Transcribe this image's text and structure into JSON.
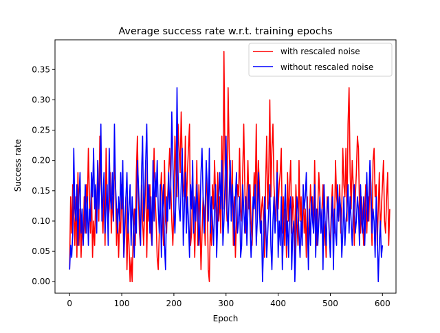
{
  "chart_data": {
    "type": "line",
    "title": "Average success rate w.r.t. training epochs",
    "xlabel": "Epoch",
    "ylabel": "Success rate",
    "xlim": [
      -28,
      626
    ],
    "ylim": [
      -0.019,
      0.399
    ],
    "xticks": [
      0,
      100,
      200,
      300,
      400,
      500,
      600
    ],
    "yticks": [
      0.0,
      0.05,
      0.1,
      0.15,
      0.2,
      0.25,
      0.3,
      0.35
    ],
    "ytick_labels": [
      "0.00",
      "0.05",
      "0.10",
      "0.15",
      "0.20",
      "0.25",
      "0.30",
      "0.35"
    ],
    "grid": false,
    "legend_position": "upper right",
    "series": [
      {
        "name": "with rescaled noise",
        "color": "#ff0000",
        "x_start": 0,
        "x_step": 2,
        "values": [
          0.02,
          0.14,
          0.08,
          0.16,
          0.12,
          0.06,
          0.14,
          0.04,
          0.18,
          0.06,
          0.12,
          0.04,
          0.1,
          0.06,
          0.14,
          0.08,
          0.16,
          0.12,
          0.22,
          0.14,
          0.08,
          0.16,
          0.04,
          0.1,
          0.06,
          0.14,
          0.12,
          0.2,
          0.1,
          0.24,
          0.18,
          0.12,
          0.08,
          0.16,
          0.06,
          0.22,
          0.14,
          0.1,
          0.12,
          0.18,
          0.08,
          0.14,
          0.1,
          0.2,
          0.16,
          0.06,
          0.12,
          0.04,
          0.1,
          0.08,
          0.16,
          0.12,
          0.04,
          0.08,
          0.14,
          0.02,
          0.1,
          0.06,
          0.0,
          0.04,
          0.0,
          0.08,
          0.12,
          0.06,
          0.18,
          0.24,
          0.14,
          0.08,
          0.06,
          0.16,
          0.1,
          0.06,
          0.12,
          0.2,
          0.04,
          0.14,
          0.1,
          0.16,
          0.08,
          0.06,
          0.12,
          0.22,
          0.14,
          0.1,
          0.04,
          0.02,
          0.08,
          0.14,
          0.18,
          0.12,
          0.06,
          0.2,
          0.1,
          0.08,
          0.14,
          0.18,
          0.22,
          0.16,
          0.1,
          0.06,
          0.12,
          0.24,
          0.18,
          0.14,
          0.26,
          0.22,
          0.18,
          0.28,
          0.2,
          0.16,
          0.14,
          0.24,
          0.12,
          0.18,
          0.22,
          0.26,
          0.06,
          0.08,
          0.16,
          0.1,
          0.04,
          0.12,
          0.2,
          0.06,
          0.16,
          0.1,
          0.02,
          0.08,
          0.14,
          0.12,
          0.06,
          0.18,
          0.14,
          0.02,
          0.0,
          0.1,
          0.06,
          0.16,
          0.12,
          0.2,
          0.14,
          0.08,
          0.18,
          0.1,
          0.14,
          0.08,
          0.24,
          0.12,
          0.38,
          0.2,
          0.14,
          0.1,
          0.32,
          0.22,
          0.16,
          0.12,
          0.2,
          0.06,
          0.14,
          0.04,
          0.1,
          0.16,
          0.14,
          0.22,
          0.12,
          0.1,
          0.18,
          0.26,
          0.16,
          0.08,
          0.14,
          0.2,
          0.12,
          0.16,
          0.1,
          0.06,
          0.12,
          0.18,
          0.14,
          0.26,
          0.1,
          0.2,
          0.16,
          0.08,
          0.12,
          0.14,
          0.1,
          0.04,
          0.16,
          0.24,
          0.12,
          0.18,
          0.3,
          0.14,
          0.22,
          0.26,
          0.16,
          0.12,
          0.1,
          0.2,
          0.12,
          0.16,
          0.18,
          0.22,
          0.08,
          0.14,
          0.06,
          0.12,
          0.04,
          0.18,
          0.1,
          0.16,
          0.2,
          0.08,
          0.14,
          0.12,
          0.04,
          0.16,
          0.1,
          0.06,
          0.2,
          0.1,
          0.14,
          0.06,
          0.16,
          0.08,
          0.12,
          0.04,
          0.14,
          0.06,
          0.1,
          0.16,
          0.12,
          0.14,
          0.08,
          0.2,
          0.1,
          0.06,
          0.12,
          0.18,
          0.14,
          0.08,
          0.12,
          0.16,
          0.06,
          0.1,
          0.04,
          0.14,
          0.12,
          0.08,
          0.06,
          0.12,
          0.16,
          0.1,
          0.08,
          0.2,
          0.14,
          0.12,
          0.1,
          0.16,
          0.08,
          0.12,
          0.22,
          0.16,
          0.14,
          0.22,
          0.1,
          0.26,
          0.32,
          0.18,
          0.12,
          0.2,
          0.16,
          0.06,
          0.14,
          0.18,
          0.24,
          0.22,
          0.12,
          0.08,
          0.14,
          0.1,
          0.06,
          0.12,
          0.16,
          0.08,
          0.14,
          0.1,
          0.18,
          0.12,
          0.06,
          0.2,
          0.22,
          0.14,
          0.16,
          0.06,
          0.12,
          0.18,
          0.08,
          0.12,
          0.16,
          0.2,
          0.1,
          0.08,
          0.14,
          0.18,
          0.06,
          0.12
        ]
      },
      {
        "name": "without rescaled noise",
        "color": "#0000ff",
        "x_start": 0,
        "x_step": 2,
        "values": [
          0.02,
          0.06,
          0.04,
          0.08,
          0.22,
          0.12,
          0.1,
          0.16,
          0.06,
          0.14,
          0.18,
          0.08,
          0.12,
          0.06,
          0.1,
          0.16,
          0.08,
          0.14,
          0.06,
          0.12,
          0.1,
          0.18,
          0.14,
          0.22,
          0.12,
          0.16,
          0.08,
          0.2,
          0.12,
          0.16,
          0.26,
          0.1,
          0.14,
          0.18,
          0.08,
          0.12,
          0.16,
          0.06,
          0.22,
          0.14,
          0.12,
          0.18,
          0.1,
          0.26,
          0.16,
          0.12,
          0.08,
          0.14,
          0.1,
          0.18,
          0.12,
          0.2,
          0.04,
          0.1,
          0.14,
          0.18,
          0.08,
          0.12,
          0.16,
          0.06,
          0.14,
          0.1,
          0.04,
          0.12,
          0.08,
          0.2,
          0.16,
          0.12,
          0.06,
          0.18,
          0.24,
          0.1,
          0.14,
          0.2,
          0.26,
          0.12,
          0.16,
          0.08,
          0.14,
          0.06,
          0.2,
          0.1,
          0.18,
          0.14,
          0.2,
          0.12,
          0.08,
          0.16,
          0.04,
          0.12,
          0.16,
          0.06,
          0.02,
          0.14,
          0.1,
          0.18,
          0.12,
          0.16,
          0.28,
          0.2,
          0.12,
          0.08,
          0.14,
          0.32,
          0.18,
          0.12,
          0.1,
          0.16,
          0.22,
          0.06,
          0.12,
          0.18,
          0.08,
          0.14,
          0.1,
          0.04,
          0.16,
          0.12,
          0.2,
          0.08,
          0.14,
          0.1,
          0.16,
          0.12,
          0.06,
          0.1,
          0.18,
          0.22,
          0.14,
          0.08,
          0.12,
          0.2,
          0.16,
          0.1,
          0.22,
          0.08,
          0.14,
          0.1,
          0.06,
          0.12,
          0.16,
          0.04,
          0.1,
          0.14,
          0.18,
          0.12,
          0.2,
          0.06,
          0.1,
          0.16,
          0.24,
          0.12,
          0.08,
          0.14,
          0.2,
          0.1,
          0.16,
          0.12,
          0.06,
          0.14,
          0.18,
          0.08,
          0.1,
          0.14,
          0.04,
          0.06,
          0.16,
          0.12,
          0.08,
          0.14,
          0.06,
          0.12,
          0.16,
          0.1,
          0.04,
          0.08,
          0.14,
          0.12,
          0.16,
          0.06,
          0.1,
          0.18,
          0.12,
          0.08,
          0.1,
          0.0,
          0.06,
          0.14,
          0.1,
          0.04,
          0.08,
          0.12,
          0.16,
          0.06,
          0.02,
          0.1,
          0.14,
          0.08,
          0.12,
          0.18,
          0.04,
          0.1,
          0.06,
          0.14,
          0.02,
          0.08,
          0.12,
          0.16,
          0.06,
          0.1,
          0.04,
          0.12,
          0.14,
          0.02,
          0.08,
          0.1,
          0.0,
          0.06,
          0.14,
          0.12,
          0.08,
          0.04,
          0.1,
          0.06,
          0.16,
          0.12,
          0.14,
          0.18,
          0.1,
          0.02,
          0.12,
          0.06,
          0.14,
          0.1,
          0.08,
          0.16,
          0.04,
          0.12,
          0.06,
          0.1,
          0.14,
          0.08,
          0.12,
          0.02,
          0.16,
          0.1,
          0.06,
          0.12,
          0.14,
          0.08,
          0.04,
          0.1,
          0.14,
          0.02,
          0.12,
          0.08,
          0.06,
          0.16,
          0.1,
          0.14,
          0.12,
          0.04,
          0.08,
          0.14,
          0.06,
          0.1,
          0.12,
          0.16,
          0.08,
          0.14,
          0.1,
          0.06,
          0.12,
          0.16,
          0.08,
          0.1,
          0.14,
          0.12,
          0.06,
          0.16,
          0.1,
          0.08,
          0.14,
          0.06,
          0.12,
          0.18,
          0.1,
          0.14,
          0.2,
          0.16,
          0.08,
          0.12,
          0.1,
          0.04,
          0.14,
          0.08,
          0.0,
          0.06,
          0.1,
          0.04,
          0.06
        ]
      }
    ]
  }
}
